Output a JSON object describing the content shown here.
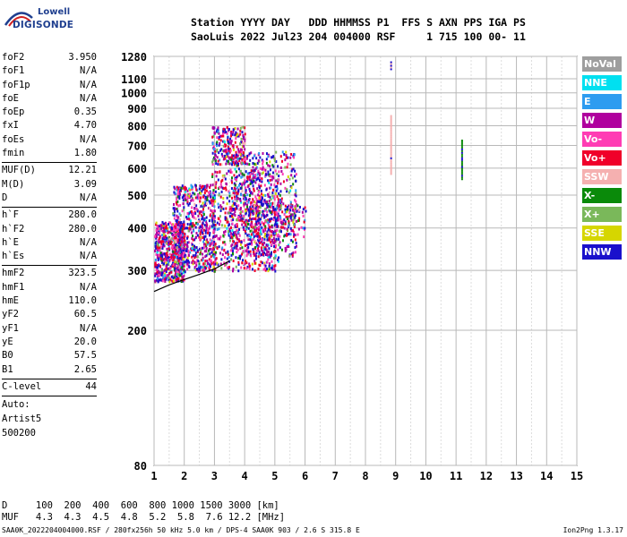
{
  "logo": {
    "line1": "Lowell",
    "line2": "DIGISONDE"
  },
  "header": {
    "line1": "Station YYYY DAY   DDD HHMMSS P1  FFS S AXN PPS IGA PS",
    "line2": "SaoLuis 2022 Jul23 204 004000 RSF     1 715 100 00- 11"
  },
  "params_group1": [
    {
      "name": "foF2",
      "value": "3.950"
    },
    {
      "name": "foF1",
      "value": "N/A"
    },
    {
      "name": "foF1p",
      "value": "N/A"
    },
    {
      "name": "foE",
      "value": "N/A"
    },
    {
      "name": "foEp",
      "value": "0.35"
    },
    {
      "name": "fxI",
      "value": "4.70"
    },
    {
      "name": "foEs",
      "value": "N/A"
    },
    {
      "name": "fmin",
      "value": "1.80"
    }
  ],
  "params_group2": [
    {
      "name": "MUF(D)",
      "value": "12.21"
    },
    {
      "name": "M(D)",
      "value": "3.09"
    },
    {
      "name": "D",
      "value": "N/A"
    }
  ],
  "params_group3": [
    {
      "name": "h`F",
      "value": "280.0"
    },
    {
      "name": "h`F2",
      "value": "280.0"
    },
    {
      "name": "h`E",
      "value": "N/A"
    },
    {
      "name": "h`Es",
      "value": "N/A"
    }
  ],
  "params_group4": [
    {
      "name": "hmF2",
      "value": "323.5"
    },
    {
      "name": "hmF1",
      "value": "N/A"
    },
    {
      "name": "hmE",
      "value": "110.0"
    },
    {
      "name": "yF2",
      "value": "60.5"
    },
    {
      "name": "yF1",
      "value": "N/A"
    },
    {
      "name": "yE",
      "value": "20.0"
    },
    {
      "name": "B0",
      "value": "57.5"
    },
    {
      "name": "B1",
      "value": "2.65"
    }
  ],
  "params_group5": [
    {
      "name": "C-level",
      "value": "44"
    }
  ],
  "auto": {
    "label": "Auto:",
    "artist": "Artist5",
    "version": "500200"
  },
  "legend": [
    {
      "label": "NoVal",
      "color": "#9e9e9e"
    },
    {
      "label": "NNE",
      "color": "#00e0f0"
    },
    {
      "label": "E",
      "color": "#2e9cf0"
    },
    {
      "label": "W",
      "color": "#b0009e"
    },
    {
      "label": "Vo-",
      "color": "#ff3cb4"
    },
    {
      "label": "Vo+",
      "color": "#f0002a"
    },
    {
      "label": "SSW",
      "color": "#f5b0b0"
    },
    {
      "label": "X-",
      "color": "#0a8a0a"
    },
    {
      "label": "X+",
      "color": "#7ab85a"
    },
    {
      "label": "SSE",
      "color": "#d6d600"
    },
    {
      "label": "NNW",
      "color": "#1a10cc"
    }
  ],
  "footer": {
    "d_row": "D     100  200  400  600  800 1000 1500 3000 [km]",
    "muf_row": "MUF   4.3  4.3  4.5  4.8  5.2  5.8  7.6 12.2 [MHz]",
    "file_line": "SAA0K_2022204004000.RSF / 280fx256h 50 kHz 5.0 km / DPS-4 SAA0K 903 / 2.6 S 315.8 E",
    "program": "Ion2Png 1.3.17"
  },
  "chart_data": {
    "type": "scatter",
    "title": "",
    "xlabel": "",
    "ylabel": "",
    "xlim": [
      1,
      15
    ],
    "ylim": [
      80,
      1280
    ],
    "x_ticks": [
      1,
      2,
      3,
      4,
      5,
      6,
      7,
      8,
      9,
      10,
      11,
      12,
      13,
      14,
      15
    ],
    "y_ticks": [
      80,
      200,
      300,
      400,
      500,
      600,
      700,
      800,
      900,
      1000,
      1100,
      1280
    ],
    "y_scale": "log",
    "grid": true,
    "legend_position": "right",
    "trace": [
      [
        1.0,
        260
      ],
      [
        1.5,
        272
      ],
      [
        2.0,
        282
      ],
      [
        2.5,
        292
      ],
      [
        3.0,
        303
      ],
      [
        3.5,
        320
      ]
    ],
    "echo_regions": [
      {
        "x": [
          1.0,
          2.0
        ],
        "y": [
          280,
          420
        ]
      },
      {
        "x": [
          1.6,
          3.0
        ],
        "y": [
          300,
          540
        ]
      },
      {
        "x": [
          2.9,
          5.1
        ],
        "y": [
          300,
          600
        ]
      },
      {
        "x": [
          3.5,
          5.7
        ],
        "y": [
          330,
          680
        ]
      },
      {
        "x": [
          4.0,
          6.0
        ],
        "y": [
          380,
          470
        ]
      },
      {
        "x": [
          2.9,
          4.0
        ],
        "y": [
          620,
          800
        ]
      }
    ],
    "vertical_traces": [
      {
        "x": 8.85,
        "y": [
          580,
          860
        ],
        "series": "SSW"
      },
      {
        "x": 8.85,
        "y": [
          1180,
          1240
        ],
        "series": "SSW"
      },
      {
        "x": 11.2,
        "y": [
          560,
          730
        ],
        "series": "X-"
      }
    ]
  }
}
